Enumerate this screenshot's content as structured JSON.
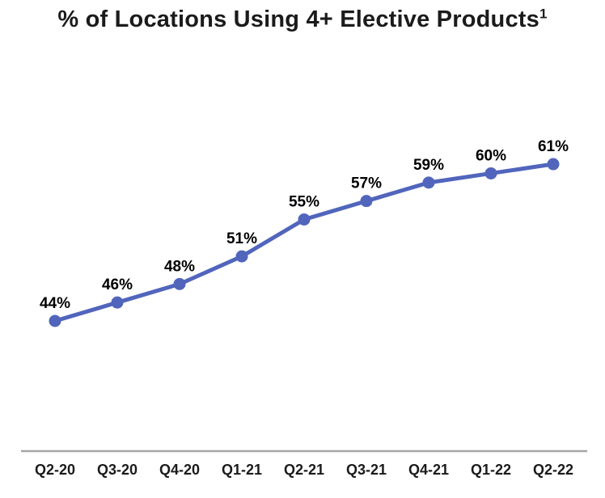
{
  "title": {
    "text": "% of Locations Using 4+ Elective Products",
    "superscript": "1"
  },
  "chart_data": {
    "type": "line",
    "title": "% of Locations Using 4+ Elective Products¹",
    "categories": [
      "Q2-20",
      "Q3-20",
      "Q4-20",
      "Q1-21",
      "Q2-21",
      "Q3-21",
      "Q4-21",
      "Q1-22",
      "Q2-22"
    ],
    "values": [
      44,
      46,
      48,
      51,
      55,
      57,
      59,
      60,
      61
    ],
    "point_labels": [
      "44%",
      "46%",
      "48%",
      "51%",
      "55%",
      "57%",
      "59%",
      "60%",
      "61%"
    ],
    "xlabel": "",
    "ylabel": "",
    "ylim": [
      40,
      65
    ],
    "grid": false,
    "legend": "none",
    "colors": {
      "line": "#5165BC",
      "marker": "#5165BC",
      "axis_line": "#A6A6A6",
      "data_label": "#000000",
      "axis_label": "#1b1b1b"
    }
  }
}
